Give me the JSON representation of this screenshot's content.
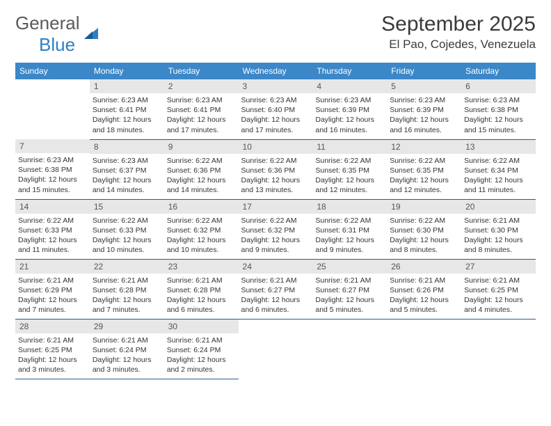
{
  "logo": {
    "line1": "General",
    "line2": "Blue"
  },
  "title": "September 2025",
  "location": "El Pao, Cojedes, Venezuela",
  "colors": {
    "header_bg": "#3b87c8",
    "header_text": "#ffffff",
    "daynum_bg": "#e7e7e7",
    "row_border": "#2a5a8a",
    "logo_gray": "#5a5a5a",
    "logo_blue": "#2f7fc2"
  },
  "weekdays": [
    "Sunday",
    "Monday",
    "Tuesday",
    "Wednesday",
    "Thursday",
    "Friday",
    "Saturday"
  ],
  "weeks": [
    [
      {
        "n": "",
        "sr": "",
        "ss": "",
        "dl": ""
      },
      {
        "n": "1",
        "sr": "Sunrise: 6:23 AM",
        "ss": "Sunset: 6:41 PM",
        "dl": "Daylight: 12 hours and 18 minutes."
      },
      {
        "n": "2",
        "sr": "Sunrise: 6:23 AM",
        "ss": "Sunset: 6:41 PM",
        "dl": "Daylight: 12 hours and 17 minutes."
      },
      {
        "n": "3",
        "sr": "Sunrise: 6:23 AM",
        "ss": "Sunset: 6:40 PM",
        "dl": "Daylight: 12 hours and 17 minutes."
      },
      {
        "n": "4",
        "sr": "Sunrise: 6:23 AM",
        "ss": "Sunset: 6:39 PM",
        "dl": "Daylight: 12 hours and 16 minutes."
      },
      {
        "n": "5",
        "sr": "Sunrise: 6:23 AM",
        "ss": "Sunset: 6:39 PM",
        "dl": "Daylight: 12 hours and 16 minutes."
      },
      {
        "n": "6",
        "sr": "Sunrise: 6:23 AM",
        "ss": "Sunset: 6:38 PM",
        "dl": "Daylight: 12 hours and 15 minutes."
      }
    ],
    [
      {
        "n": "7",
        "sr": "Sunrise: 6:23 AM",
        "ss": "Sunset: 6:38 PM",
        "dl": "Daylight: 12 hours and 15 minutes."
      },
      {
        "n": "8",
        "sr": "Sunrise: 6:23 AM",
        "ss": "Sunset: 6:37 PM",
        "dl": "Daylight: 12 hours and 14 minutes."
      },
      {
        "n": "9",
        "sr": "Sunrise: 6:22 AM",
        "ss": "Sunset: 6:36 PM",
        "dl": "Daylight: 12 hours and 14 minutes."
      },
      {
        "n": "10",
        "sr": "Sunrise: 6:22 AM",
        "ss": "Sunset: 6:36 PM",
        "dl": "Daylight: 12 hours and 13 minutes."
      },
      {
        "n": "11",
        "sr": "Sunrise: 6:22 AM",
        "ss": "Sunset: 6:35 PM",
        "dl": "Daylight: 12 hours and 12 minutes."
      },
      {
        "n": "12",
        "sr": "Sunrise: 6:22 AM",
        "ss": "Sunset: 6:35 PM",
        "dl": "Daylight: 12 hours and 12 minutes."
      },
      {
        "n": "13",
        "sr": "Sunrise: 6:22 AM",
        "ss": "Sunset: 6:34 PM",
        "dl": "Daylight: 12 hours and 11 minutes."
      }
    ],
    [
      {
        "n": "14",
        "sr": "Sunrise: 6:22 AM",
        "ss": "Sunset: 6:33 PM",
        "dl": "Daylight: 12 hours and 11 minutes."
      },
      {
        "n": "15",
        "sr": "Sunrise: 6:22 AM",
        "ss": "Sunset: 6:33 PM",
        "dl": "Daylight: 12 hours and 10 minutes."
      },
      {
        "n": "16",
        "sr": "Sunrise: 6:22 AM",
        "ss": "Sunset: 6:32 PM",
        "dl": "Daylight: 12 hours and 10 minutes."
      },
      {
        "n": "17",
        "sr": "Sunrise: 6:22 AM",
        "ss": "Sunset: 6:32 PM",
        "dl": "Daylight: 12 hours and 9 minutes."
      },
      {
        "n": "18",
        "sr": "Sunrise: 6:22 AM",
        "ss": "Sunset: 6:31 PM",
        "dl": "Daylight: 12 hours and 9 minutes."
      },
      {
        "n": "19",
        "sr": "Sunrise: 6:22 AM",
        "ss": "Sunset: 6:30 PM",
        "dl": "Daylight: 12 hours and 8 minutes."
      },
      {
        "n": "20",
        "sr": "Sunrise: 6:21 AM",
        "ss": "Sunset: 6:30 PM",
        "dl": "Daylight: 12 hours and 8 minutes."
      }
    ],
    [
      {
        "n": "21",
        "sr": "Sunrise: 6:21 AM",
        "ss": "Sunset: 6:29 PM",
        "dl": "Daylight: 12 hours and 7 minutes."
      },
      {
        "n": "22",
        "sr": "Sunrise: 6:21 AM",
        "ss": "Sunset: 6:28 PM",
        "dl": "Daylight: 12 hours and 7 minutes."
      },
      {
        "n": "23",
        "sr": "Sunrise: 6:21 AM",
        "ss": "Sunset: 6:28 PM",
        "dl": "Daylight: 12 hours and 6 minutes."
      },
      {
        "n": "24",
        "sr": "Sunrise: 6:21 AM",
        "ss": "Sunset: 6:27 PM",
        "dl": "Daylight: 12 hours and 6 minutes."
      },
      {
        "n": "25",
        "sr": "Sunrise: 6:21 AM",
        "ss": "Sunset: 6:27 PM",
        "dl": "Daylight: 12 hours and 5 minutes."
      },
      {
        "n": "26",
        "sr": "Sunrise: 6:21 AM",
        "ss": "Sunset: 6:26 PM",
        "dl": "Daylight: 12 hours and 5 minutes."
      },
      {
        "n": "27",
        "sr": "Sunrise: 6:21 AM",
        "ss": "Sunset: 6:25 PM",
        "dl": "Daylight: 12 hours and 4 minutes."
      }
    ],
    [
      {
        "n": "28",
        "sr": "Sunrise: 6:21 AM",
        "ss": "Sunset: 6:25 PM",
        "dl": "Daylight: 12 hours and 3 minutes."
      },
      {
        "n": "29",
        "sr": "Sunrise: 6:21 AM",
        "ss": "Sunset: 6:24 PM",
        "dl": "Daylight: 12 hours and 3 minutes."
      },
      {
        "n": "30",
        "sr": "Sunrise: 6:21 AM",
        "ss": "Sunset: 6:24 PM",
        "dl": "Daylight: 12 hours and 2 minutes."
      },
      {
        "n": "",
        "sr": "",
        "ss": "",
        "dl": ""
      },
      {
        "n": "",
        "sr": "",
        "ss": "",
        "dl": ""
      },
      {
        "n": "",
        "sr": "",
        "ss": "",
        "dl": ""
      },
      {
        "n": "",
        "sr": "",
        "ss": "",
        "dl": ""
      }
    ]
  ]
}
